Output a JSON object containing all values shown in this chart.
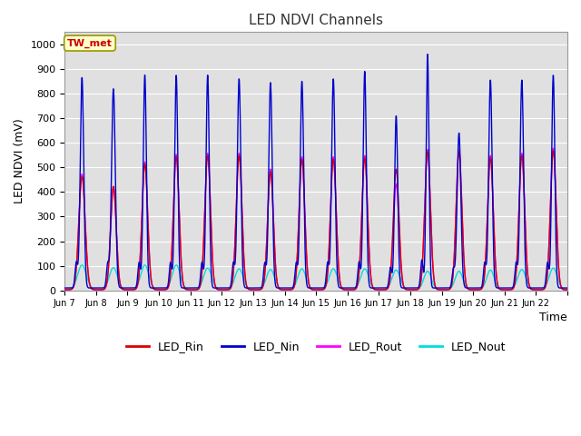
{
  "title": "LED NDVI Channels",
  "xlabel": "Time",
  "ylabel": "LED NDVI (mV)",
  "ylim": [
    0,
    1050
  ],
  "yticks": [
    0,
    100,
    200,
    300,
    400,
    500,
    600,
    700,
    800,
    900,
    1000
  ],
  "fig_bg_color": "#ffffff",
  "plot_bg_color": "#e0e0e0",
  "grid_color": "#ffffff",
  "annotation_text": "TW_met",
  "annotation_fg": "#cc0000",
  "annotation_bg": "#ffffcc",
  "annotation_border": "#999900",
  "colors": {
    "LED_Rin": "#dd0000",
    "LED_Nin": "#0000cc",
    "LED_Rout": "#ff00ff",
    "LED_Nout": "#00dddd"
  },
  "legend_labels": [
    "LED_Rin",
    "LED_Nin",
    "LED_Rout",
    "LED_Nout"
  ],
  "x_tick_labels": [
    "Jun 7",
    "Jun 8",
    "Jun 9",
    "Jun 10",
    "Jun 11",
    "Jun 12",
    "Jun 13",
    "Jun 14",
    "Jun 15",
    "Jun 16",
    "Jun 17",
    "Jun 18",
    "Jun 19",
    "Jun 20",
    "Jun 21",
    "Jun 22"
  ],
  "nin_heights": [
    855,
    810,
    865,
    865,
    865,
    850,
    835,
    840,
    850,
    880,
    700,
    950,
    630,
    845,
    845,
    865
  ],
  "rout_heights": [
    470,
    415,
    520,
    550,
    555,
    555,
    490,
    540,
    540,
    545,
    430,
    570,
    570,
    545,
    555,
    575
  ],
  "rin_heights": [
    460,
    420,
    510,
    540,
    545,
    545,
    480,
    530,
    530,
    535,
    490,
    560,
    560,
    535,
    545,
    565
  ],
  "nout_heights": [
    100,
    90,
    100,
    100,
    88,
    85,
    82,
    85,
    85,
    85,
    80,
    75,
    75,
    80,
    82,
    88
  ],
  "nin_widths": [
    0.055,
    0.06,
    0.05,
    0.05,
    0.05,
    0.055,
    0.055,
    0.055,
    0.055,
    0.05,
    0.05,
    0.045,
    0.06,
    0.055,
    0.055,
    0.05
  ],
  "rout_widths": [
    0.1,
    0.09,
    0.09,
    0.09,
    0.09,
    0.09,
    0.09,
    0.09,
    0.09,
    0.09,
    0.09,
    0.09,
    0.09,
    0.09,
    0.09,
    0.09
  ],
  "rin_widths": [
    0.1,
    0.09,
    0.09,
    0.09,
    0.09,
    0.09,
    0.09,
    0.09,
    0.09,
    0.09,
    0.09,
    0.09,
    0.09,
    0.09,
    0.09,
    0.09
  ],
  "nout_widths": [
    0.14,
    0.13,
    0.13,
    0.13,
    0.13,
    0.13,
    0.13,
    0.13,
    0.13,
    0.13,
    0.13,
    0.12,
    0.12,
    0.12,
    0.13,
    0.13
  ],
  "peak_positions": [
    0.55,
    1.55,
    2.55,
    3.55,
    4.55,
    5.55,
    6.55,
    7.55,
    8.55,
    9.55,
    10.55,
    11.55,
    12.55,
    13.55,
    14.55,
    15.55
  ]
}
